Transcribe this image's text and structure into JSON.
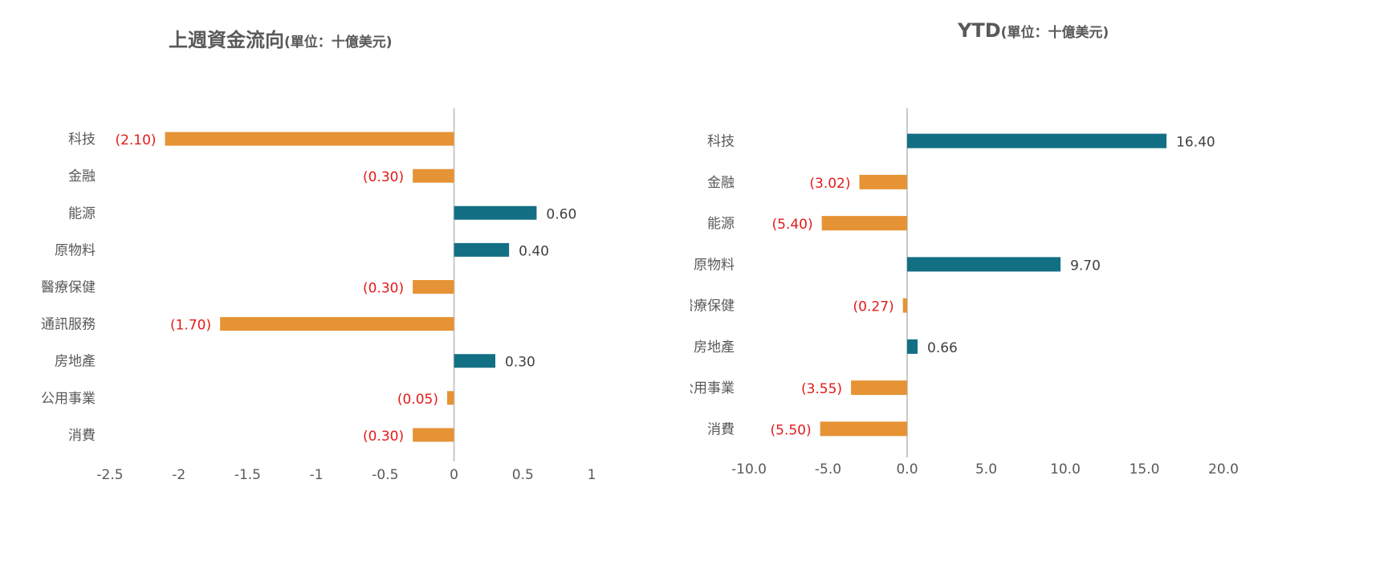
{
  "colors": {
    "positive": "#136f84",
    "negative": "#e69335",
    "neg_label": "#e41a1a",
    "pos_label": "#404040",
    "axis_text": "#595959",
    "zero_line": "#c8c8c8"
  },
  "chart_data": [
    {
      "type": "bar",
      "orientation": "horizontal",
      "title": "上週資金流向",
      "subtitle": "(單位：十億美元)",
      "categories": [
        "科技",
        "金融",
        "能源",
        "原物料",
        "醫療保健",
        "通訊服務",
        "房地產",
        "公用事業",
        "消費"
      ],
      "values": [
        -2.1,
        -0.3,
        0.6,
        0.4,
        -0.3,
        -1.7,
        0.3,
        -0.05,
        -0.3
      ],
      "value_labels": [
        "(2.10)",
        "(0.30)",
        "0.60",
        "0.40",
        "(0.30)",
        "(1.70)",
        "0.30",
        "(0.05)",
        "(0.30)"
      ],
      "xlim": [
        -2.5,
        1
      ],
      "xticks": [
        -2.5,
        -2,
        -1.5,
        -1,
        -0.5,
        0,
        0.5,
        1
      ],
      "xtick_labels": [
        "-2.5",
        "-2",
        "-1.5",
        "-1",
        "-0.5",
        "0",
        "0.5",
        "1"
      ],
      "grid": false,
      "legend": "none"
    },
    {
      "type": "bar",
      "orientation": "horizontal",
      "title": "YTD",
      "subtitle": "(單位：十億美元)",
      "categories": [
        "科技",
        "金融",
        "能源",
        "原物料",
        "醫療保健",
        "房地產",
        "公用事業",
        "消費"
      ],
      "values": [
        16.4,
        -3.02,
        -5.4,
        9.7,
        -0.27,
        0.66,
        -3.55,
        -5.5
      ],
      "value_labels": [
        "16.40",
        "(3.02)",
        "(5.40)",
        "9.70",
        "(0.27)",
        "0.66",
        "(3.55)",
        "(5.50)"
      ],
      "xlim": [
        -10,
        20
      ],
      "xticks": [
        -10,
        -5,
        0,
        5,
        10,
        15,
        20
      ],
      "xtick_labels": [
        "-10.0",
        "-5.0",
        "0.0",
        "5.0",
        "10.0",
        "15.0",
        "20.0"
      ],
      "grid": false,
      "legend": "none"
    }
  ]
}
